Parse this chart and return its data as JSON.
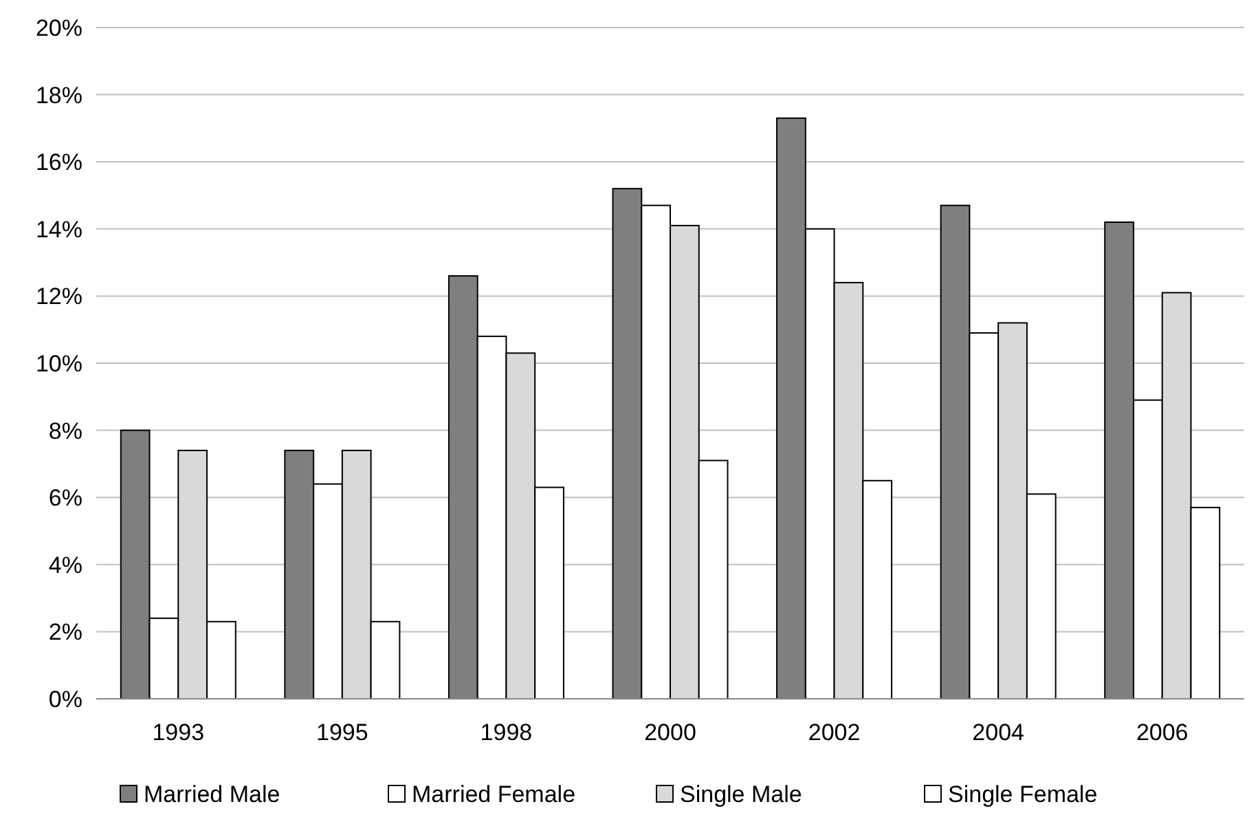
{
  "chart_data": {
    "type": "bar",
    "categories": [
      "1993",
      "1995",
      "1998",
      "2000",
      "2002",
      "2004",
      "2006"
    ],
    "series": [
      {
        "name": "Married Male",
        "color": "#7f7f7f",
        "values": [
          8.0,
          7.4,
          12.6,
          15.2,
          17.3,
          14.7,
          14.2
        ]
      },
      {
        "name": "Married Female",
        "color": "#ffffff",
        "values": [
          2.4,
          6.4,
          10.8,
          14.7,
          14.0,
          10.9,
          8.9
        ]
      },
      {
        "name": "Single Male",
        "color": "#d9d9d9",
        "values": [
          7.4,
          7.4,
          10.3,
          14.1,
          12.4,
          11.2,
          12.1
        ]
      },
      {
        "name": "Single Female",
        "color": "#ffffff",
        "values": [
          2.3,
          2.3,
          6.3,
          7.1,
          6.5,
          6.1,
          5.7
        ]
      }
    ],
    "ylim": [
      0,
      20
    ],
    "yticks": [
      {
        "value": 0,
        "label": "0%"
      },
      {
        "value": 2,
        "label": "2%"
      },
      {
        "value": 4,
        "label": "4%"
      },
      {
        "value": 6,
        "label": "6%"
      },
      {
        "value": 8,
        "label": "8%"
      },
      {
        "value": 10,
        "label": "10%"
      },
      {
        "value": 12,
        "label": "12%"
      },
      {
        "value": 14,
        "label": "14%"
      },
      {
        "value": 16,
        "label": "16%"
      },
      {
        "value": 18,
        "label": "18%"
      },
      {
        "value": 20,
        "label": "20%"
      }
    ],
    "grid": "y",
    "legend": "bottom"
  }
}
